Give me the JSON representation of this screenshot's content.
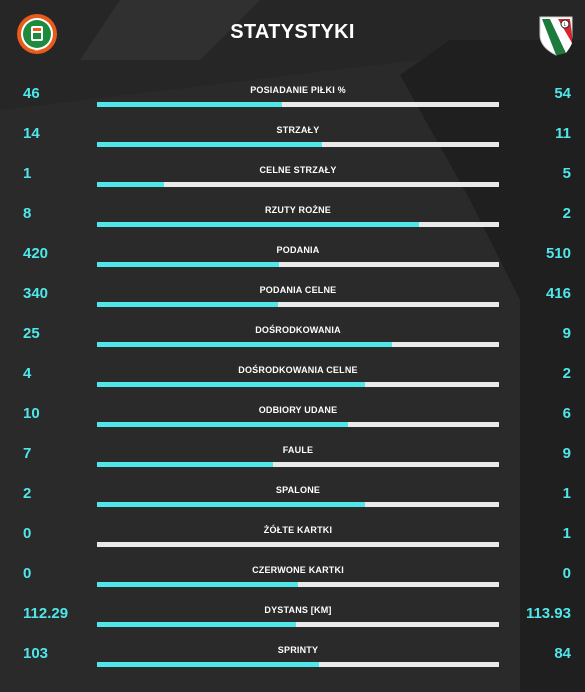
{
  "header": {
    "title": "STATYSTYKI",
    "home_logo": "zaglebie-lubin-crest",
    "away_logo": "legia-warszawa-crest"
  },
  "colors": {
    "background": "#2a2a2a",
    "accent": "#4fe7ea",
    "bar_track": "#e9e9e9",
    "text": "#ffffff"
  },
  "stats": [
    {
      "label": "POSIADANIE PIŁKI %",
      "home": "46",
      "away": "54",
      "home_share": 0.46
    },
    {
      "label": "STRZAŁY",
      "home": "14",
      "away": "11",
      "home_share": 0.56
    },
    {
      "label": "CELNE STRZAŁY",
      "home": "1",
      "away": "5",
      "home_share": 0.167
    },
    {
      "label": "RZUTY ROŻNE",
      "home": "8",
      "away": "2",
      "home_share": 0.8
    },
    {
      "label": "PODANIA",
      "home": "420",
      "away": "510",
      "home_share": 0.452
    },
    {
      "label": "PODANIA CELNE",
      "home": "340",
      "away": "416",
      "home_share": 0.45
    },
    {
      "label": "DOŚRODKOWANIA",
      "home": "25",
      "away": "9",
      "home_share": 0.735
    },
    {
      "label": "DOŚRODKOWANIA CELNE",
      "home": "4",
      "away": "2",
      "home_share": 0.667
    },
    {
      "label": "ODBIORY UDANE",
      "home": "10",
      "away": "6",
      "home_share": 0.625
    },
    {
      "label": "FAULE",
      "home": "7",
      "away": "9",
      "home_share": 0.4375
    },
    {
      "label": "SPALONE",
      "home": "2",
      "away": "1",
      "home_share": 0.667
    },
    {
      "label": "ŻÓŁTE KARTKI",
      "home": "0",
      "away": "1",
      "home_share": 0.0
    },
    {
      "label": "CZERWONE KARTKI",
      "home": "0",
      "away": "0",
      "home_share": 0.5
    },
    {
      "label": "DYSTANS [KM]",
      "home": "112.29",
      "away": "113.93",
      "home_share": 0.496
    },
    {
      "label": "SPRINTY",
      "home": "103",
      "away": "84",
      "home_share": 0.551
    }
  ]
}
